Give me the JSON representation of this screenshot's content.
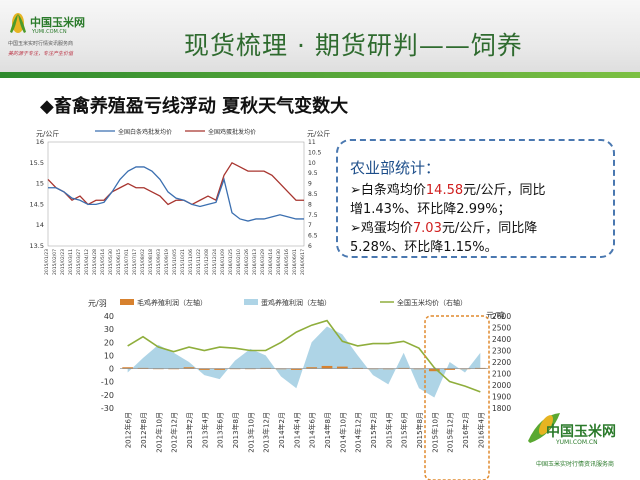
{
  "header": {
    "logo_name": "中国玉米网",
    "logo_url": "YUMI.COM.CN",
    "logo_slogan": "中国玉米实时行情资讯服务商",
    "logo_tag": "美的源于专注，专注产生价值",
    "title": "现货梳理 · 期货研判——饲养"
  },
  "subtitle": "◆畜禽养殖盈亏线浮动  夏秋天气变数大",
  "callout": {
    "heading": "农业部统计：",
    "line1_a": "➢白条鸡均价",
    "line1_v": "14.58",
    "line1_b": "元/公斤，同比",
    "line2": "增1.43%、环比降2.99%；",
    "line3_a": "➢鸡蛋均价",
    "line3_v": "7.03",
    "line3_b": "元/公斤，同比降",
    "line4": "5.28%、环比降1.15%。"
  },
  "footer": {
    "logo_name": "中国玉米网",
    "logo_url": "YUMI.COM.CN",
    "logo_slogan": "中国玉米实时行情资讯服务商"
  },
  "colors": {
    "red": "#a8352f",
    "blue": "#3b6fb0",
    "green": "#8fae3c",
    "area": "#aed4e6",
    "orange": "#d7812e",
    "brand": "#2a7a2a"
  },
  "chart_data": [
    {
      "type": "line",
      "ylabel_left": "元/公斤",
      "ylabel_right": "元/公斤",
      "ylim_left": [
        13.5,
        16
      ],
      "ylim_right": [
        6,
        11
      ],
      "yticks_left": [
        "16",
        "15.5",
        "15",
        "14.5",
        "14",
        "13.5"
      ],
      "yticks_right": [
        "11",
        "10.5",
        "10",
        "9.5",
        "9",
        "8.5",
        "8",
        "7.5",
        "7",
        "6.5",
        "6"
      ],
      "x": [
        "2015/01/23",
        "2015/02/07",
        "2015/02/23",
        "2015/03/11",
        "2015/03/27",
        "2015/04/12",
        "2015/04/28",
        "2015/05/14",
        "2015/05/30",
        "2015/06/15",
        "2015/07/01",
        "2015/07/17",
        "2015/08/02",
        "2015/08/18",
        "2015/09/03",
        "2015/09/19",
        "2015/10/05",
        "2015/10/21",
        "2015/11/06",
        "2015/11/22",
        "2015/12/08",
        "2015/12/24",
        "2016/01/09",
        "2016/01/25",
        "2016/02/10",
        "2016/02/26",
        "2016/03/13",
        "2016/03/29",
        "2016/04/14",
        "2016/04/30",
        "2016/05/16",
        "2016/06/01",
        "2016/06/17"
      ],
      "series": [
        {
          "name": "全国白条鸡批发均价",
          "axis": "left",
          "values": [
            15.1,
            14.9,
            14.8,
            14.6,
            14.7,
            14.5,
            14.6,
            14.6,
            14.8,
            14.9,
            15.0,
            14.9,
            14.9,
            14.8,
            14.7,
            14.5,
            14.6,
            14.6,
            14.5,
            14.6,
            14.7,
            14.6,
            15.2,
            15.5,
            15.4,
            15.3,
            15.3,
            15.3,
            15.2,
            15.0,
            14.8,
            14.6,
            14.6
          ]
        },
        {
          "name": "全国鸡蛋批发均价",
          "axis": "right",
          "values": [
            8.8,
            8.8,
            8.6,
            8.3,
            8.2,
            8.0,
            8.0,
            8.1,
            8.6,
            9.2,
            9.6,
            9.8,
            9.8,
            9.6,
            9.2,
            8.6,
            8.3,
            8.2,
            8.0,
            7.9,
            8.0,
            8.1,
            9.2,
            7.6,
            7.3,
            7.2,
            7.3,
            7.3,
            7.4,
            7.5,
            7.4,
            7.3,
            7.3
          ]
        }
      ]
    },
    {
      "type": "bar+area+line",
      "ylabel_left": "元/羽",
      "ylabel_right": "元/吨",
      "ylim_left": [
        -30,
        40
      ],
      "ylim_right": [
        1800,
        2600
      ],
      "yticks_left": [
        "40",
        "30",
        "20",
        "10",
        "0",
        "-10",
        "-20",
        "-30"
      ],
      "yticks_right": [
        "2600",
        "2500",
        "2400",
        "2300",
        "2200",
        "2100",
        "2000",
        "1900",
        "1800"
      ],
      "categories": [
        "2012年6月",
        "2012年8月",
        "2012年10月",
        "2012年12月",
        "2013年2月",
        "2013年4月",
        "2013年6月",
        "2013年8月",
        "2013年10月",
        "2013年12月",
        "2014年2月",
        "2014年4月",
        "2014年6月",
        "2014年8月",
        "2014年10月",
        "2014年12月",
        "2015年2月",
        "2015年4月",
        "2015年6月",
        "2015年8月",
        "2015年10月",
        "2015年12月",
        "2016年2月",
        "2016年4月"
      ],
      "series": [
        {
          "name": "毛鸡养殖利润（左轴）",
          "axis": "left",
          "type": "bar",
          "values": [
            1,
            0.5,
            0,
            -0.5,
            1,
            -1,
            -1,
            0,
            0,
            0.5,
            -0.5,
            -1,
            1,
            2,
            1.5,
            0.5,
            0,
            -0.5,
            0.5,
            -0.5,
            -2,
            -1,
            0,
            0.5
          ]
        },
        {
          "name": "蛋鸡养殖利润（左轴）",
          "axis": "left",
          "type": "area",
          "values": [
            -3,
            8,
            18,
            12,
            5,
            -5,
            -8,
            6,
            15,
            10,
            -6,
            -15,
            20,
            32,
            26,
            10,
            -5,
            -12,
            12,
            -15,
            -22,
            5,
            -3,
            12
          ]
        },
        {
          "name": "全国玉米均价（右轴）",
          "axis": "right",
          "type": "line",
          "values": [
            2340,
            2420,
            2330,
            2290,
            2330,
            2300,
            2330,
            2320,
            2300,
            2300,
            2370,
            2460,
            2520,
            2560,
            2380,
            2340,
            2360,
            2360,
            2380,
            2320,
            2150,
            2030,
            1990,
            1940
          ]
        }
      ]
    }
  ]
}
